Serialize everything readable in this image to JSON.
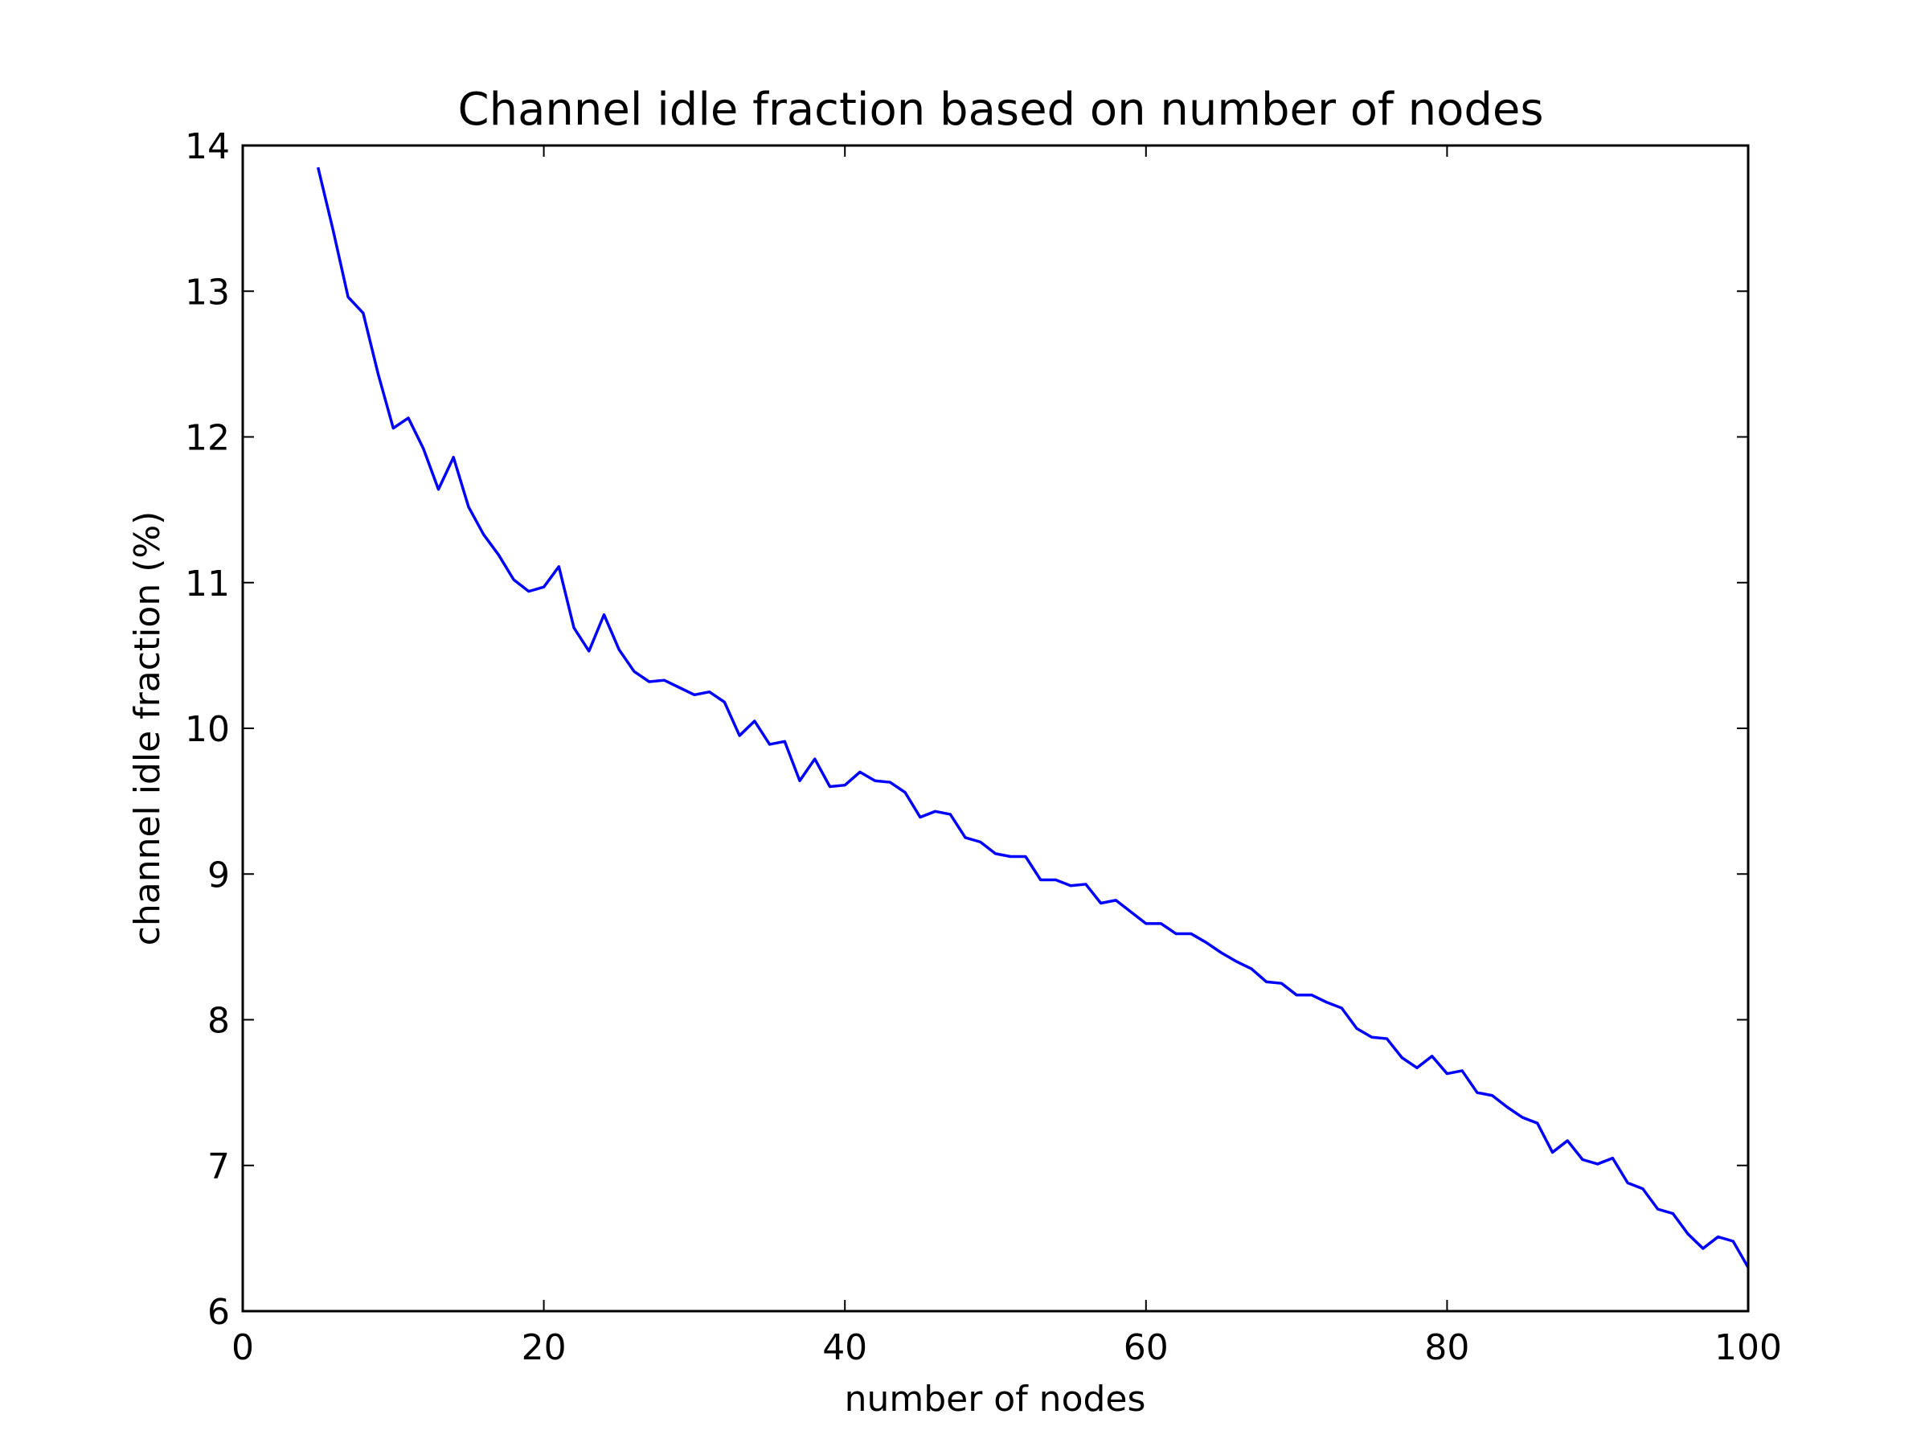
{
  "chart_data": {
    "type": "line",
    "title": "Channel idle fraction based on number of nodes",
    "xlabel": "number of nodes",
    "ylabel": "channel idle fraction (%)",
    "xlim": [
      0,
      100
    ],
    "ylim": [
      6,
      14
    ],
    "x_ticks": [
      0,
      20,
      40,
      60,
      80,
      100
    ],
    "y_ticks": [
      6,
      7,
      8,
      9,
      10,
      11,
      12,
      13,
      14
    ],
    "x_tick_labels": [
      "0",
      "20",
      "40",
      "60",
      "80",
      "100"
    ],
    "y_tick_labels": [
      "6",
      "7",
      "8",
      "9",
      "10",
      "11",
      "12",
      "13",
      "14"
    ],
    "grid": false,
    "legend": "none",
    "series": [
      {
        "color": "#0000ff",
        "x": [
          5,
          6,
          7,
          8,
          9,
          10,
          11,
          12,
          13,
          14,
          15,
          16,
          17,
          18,
          19,
          20,
          21,
          22,
          23,
          24,
          25,
          26,
          27,
          28,
          29,
          30,
          31,
          32,
          33,
          34,
          35,
          36,
          37,
          38,
          39,
          40,
          41,
          42,
          43,
          44,
          45,
          46,
          47,
          48,
          49,
          50,
          51,
          52,
          53,
          54,
          55,
          56,
          57,
          58,
          59,
          60,
          61,
          62,
          63,
          64,
          65,
          66,
          67,
          68,
          69,
          70,
          71,
          72,
          73,
          74,
          75,
          76,
          77,
          78,
          79,
          80,
          81,
          82,
          83,
          84,
          85,
          86,
          87,
          88,
          89,
          90,
          91,
          92,
          93,
          94,
          95,
          96,
          97,
          98,
          99,
          100
        ],
        "y": [
          13.85,
          13.42,
          12.96,
          12.85,
          12.43,
          12.06,
          12.13,
          11.92,
          11.64,
          11.86,
          11.52,
          11.33,
          11.19,
          11.02,
          10.94,
          10.97,
          11.11,
          10.69,
          10.53,
          10.78,
          10.54,
          10.39,
          10.32,
          10.33,
          10.28,
          10.23,
          10.25,
          10.18,
          9.95,
          10.05,
          9.89,
          9.91,
          9.64,
          9.79,
          9.6,
          9.61,
          9.7,
          9.64,
          9.63,
          9.56,
          9.39,
          9.43,
          9.41,
          9.25,
          9.22,
          9.14,
          9.12,
          9.12,
          8.96,
          8.96,
          8.92,
          8.93,
          8.8,
          8.82,
          8.74,
          8.66,
          8.66,
          8.59,
          8.59,
          8.53,
          8.46,
          8.4,
          8.35,
          8.26,
          8.25,
          8.17,
          8.17,
          8.12,
          8.08,
          7.94,
          7.88,
          7.87,
          7.74,
          7.67,
          7.75,
          7.63,
          7.65,
          7.5,
          7.48,
          7.4,
          7.33,
          7.29,
          7.09,
          7.17,
          7.04,
          7.01,
          7.05,
          6.88,
          6.84,
          6.7,
          6.67,
          6.53,
          6.43,
          6.51,
          6.48,
          6.3
        ]
      }
    ]
  }
}
